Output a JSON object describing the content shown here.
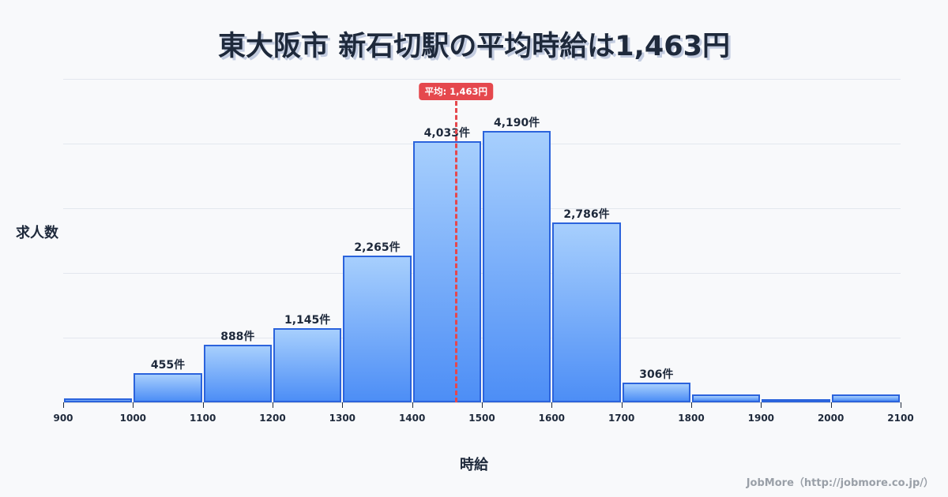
{
  "title": "東大阪市 新石切駅の平均時給は1,463円",
  "credit": "JobMore（http://jobmore.co.jp/）",
  "chart_data": {
    "type": "bar",
    "title": "東大阪市 新石切駅の平均時給は1,463円",
    "xlabel": "時給",
    "ylabel": "求人数",
    "bins": [
      {
        "from": 900,
        "to": 1000,
        "value": 60,
        "label": ""
      },
      {
        "from": 1000,
        "to": 1100,
        "value": 455,
        "label": "455件"
      },
      {
        "from": 1100,
        "to": 1200,
        "value": 888,
        "label": "888件"
      },
      {
        "from": 1200,
        "to": 1300,
        "value": 1145,
        "label": "1,145件"
      },
      {
        "from": 1300,
        "to": 1400,
        "value": 2265,
        "label": "2,265件"
      },
      {
        "from": 1400,
        "to": 1500,
        "value": 4033,
        "label": "4,033件"
      },
      {
        "from": 1500,
        "to": 1600,
        "value": 4190,
        "label": "4,190件"
      },
      {
        "from": 1600,
        "to": 1700,
        "value": 2786,
        "label": "2,786件"
      },
      {
        "from": 1700,
        "to": 1800,
        "value": 306,
        "label": "306件"
      },
      {
        "from": 1800,
        "to": 1900,
        "value": 120,
        "label": ""
      },
      {
        "from": 1900,
        "to": 2000,
        "value": 50,
        "label": ""
      },
      {
        "from": 2000,
        "to": 2100,
        "value": 120,
        "label": ""
      }
    ],
    "x_ticks": [
      "900",
      "1000",
      "1100",
      "1200",
      "1300",
      "1400",
      "1500",
      "1600",
      "1700",
      "1800",
      "1900",
      "2000",
      "2100"
    ],
    "xlim": [
      900,
      2100
    ],
    "ylim": [
      0,
      5000
    ],
    "grid": true,
    "mean": {
      "value": 1463,
      "label": "平均: 1,463円",
      "color": "#e5484d"
    },
    "bar_color": "#4d8ef6",
    "bar_border": "#2b63dc"
  }
}
